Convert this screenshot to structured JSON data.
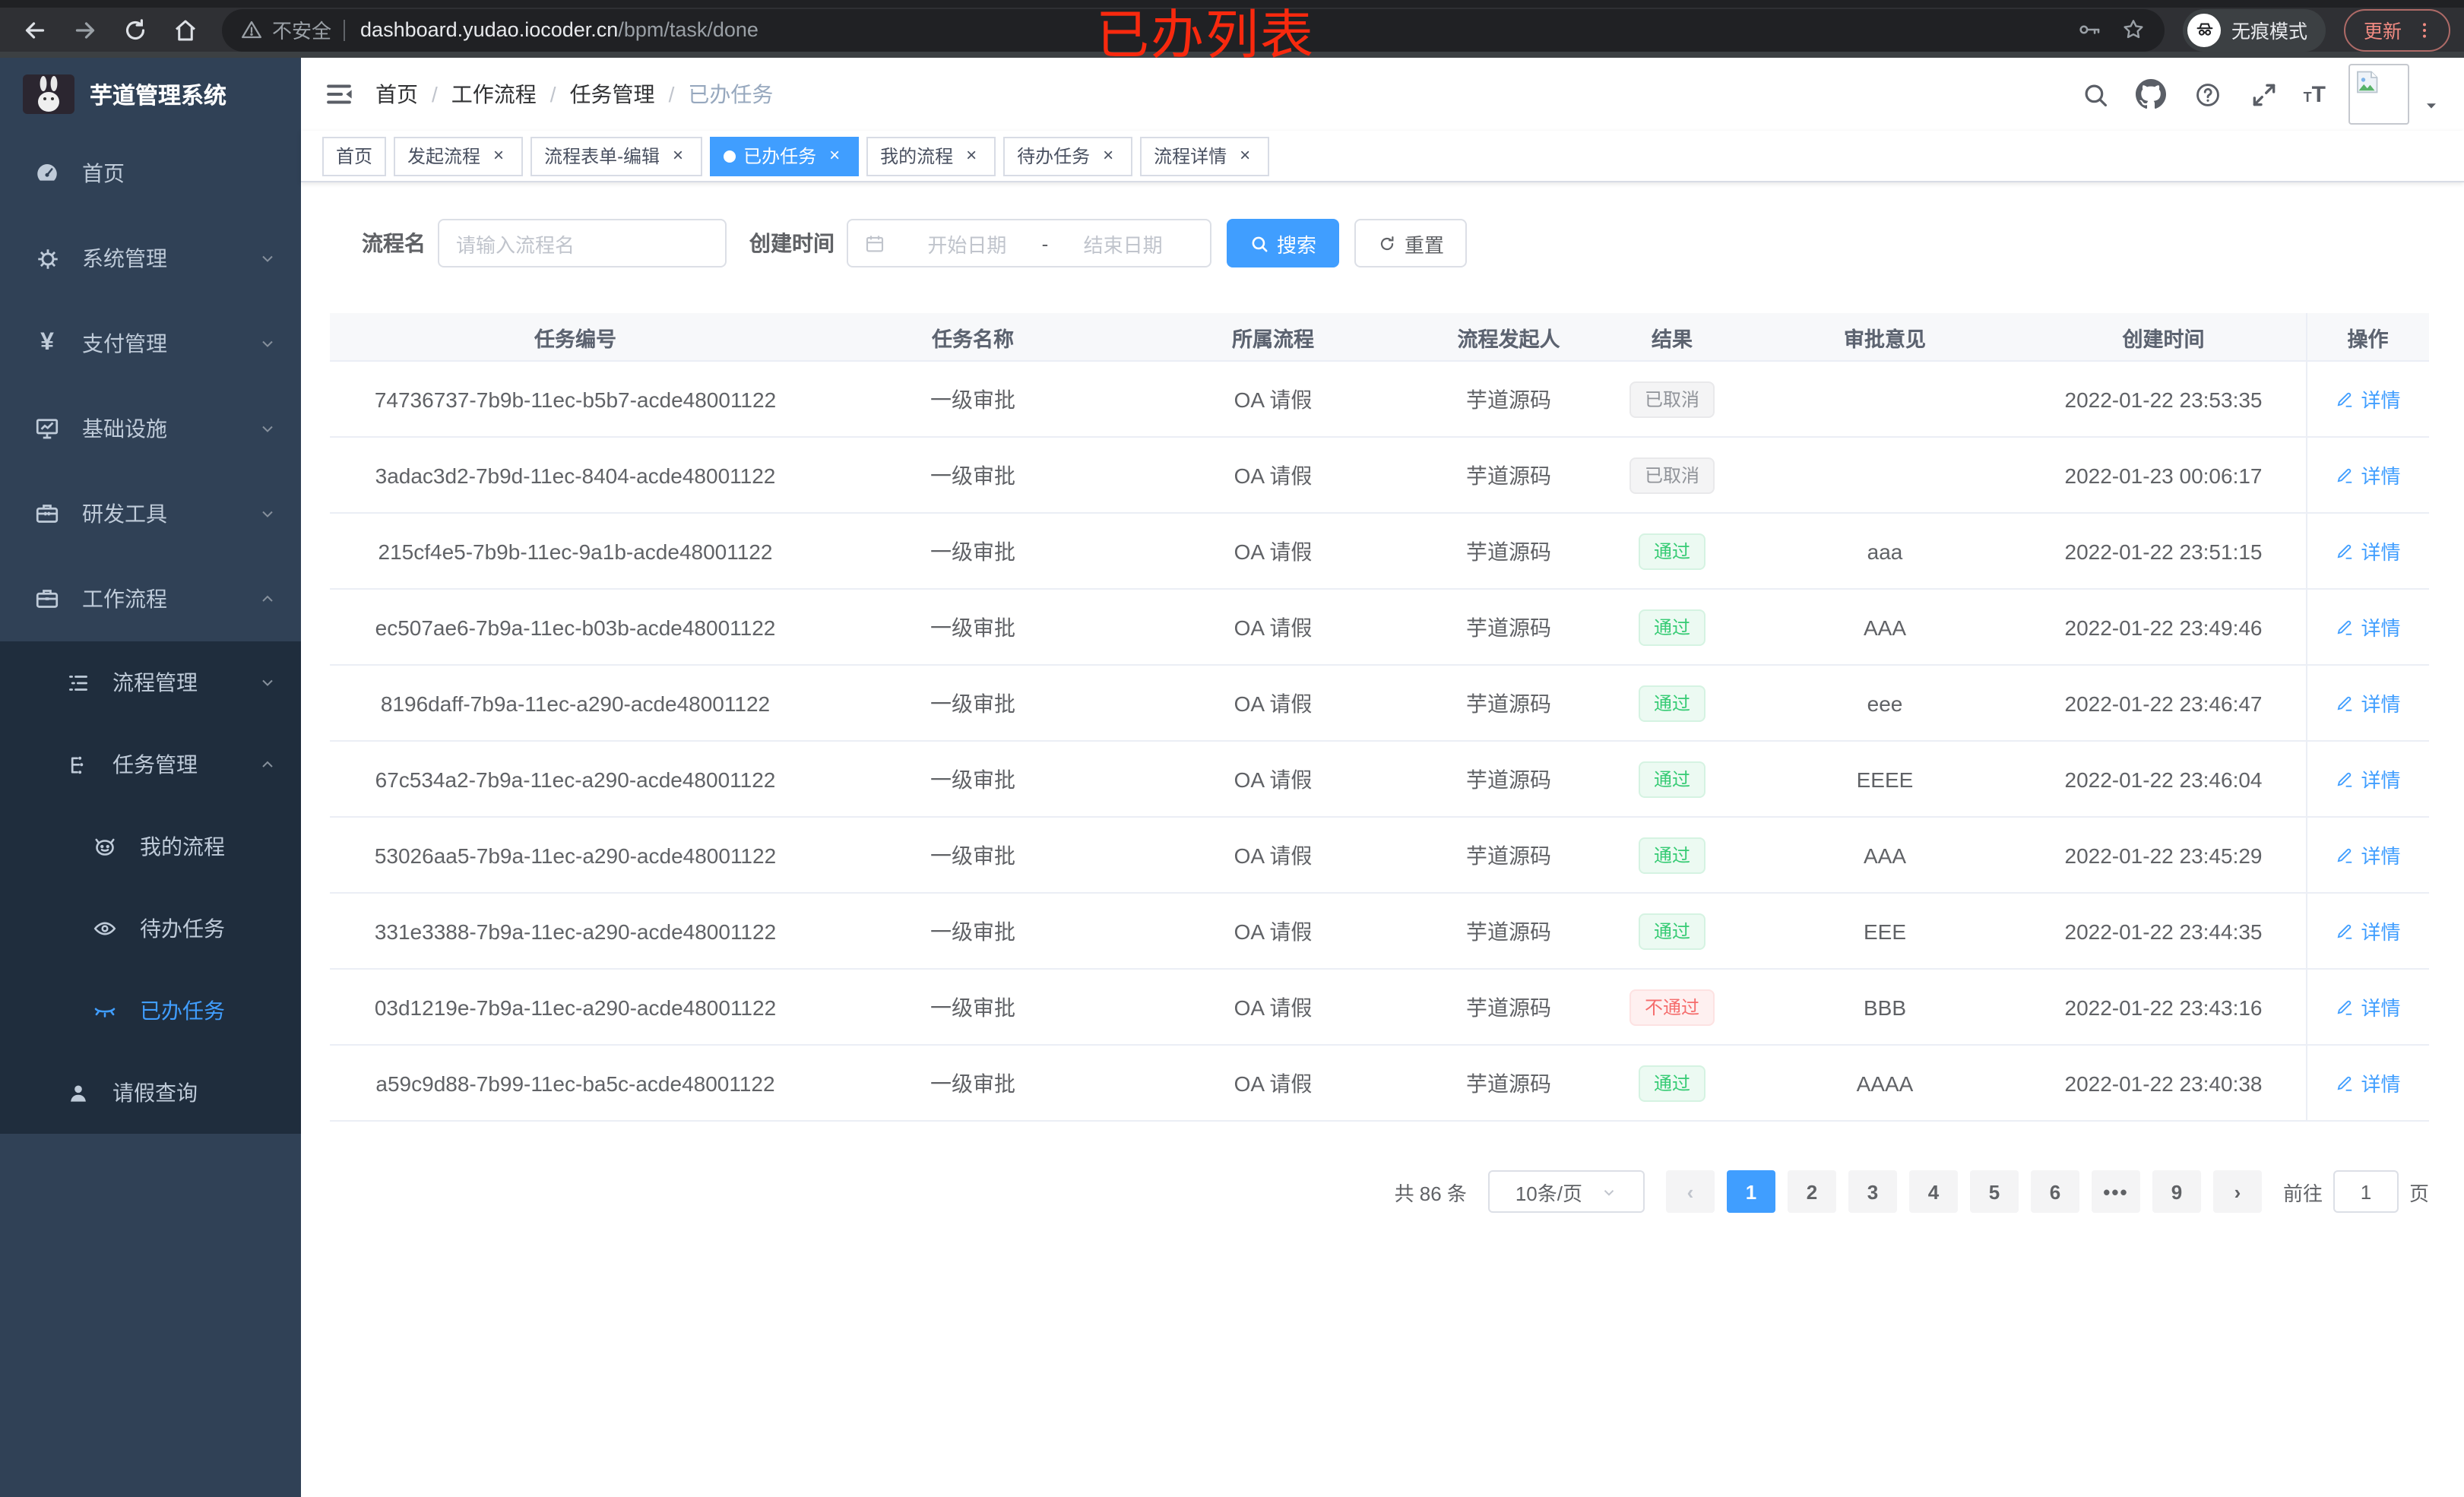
{
  "browser": {
    "security_label": "不安全",
    "url_domain": "dashboard.yudao.iocoder.cn",
    "url_path": "/bpm/task/done",
    "incognito_label": "无痕模式",
    "update_label": "更新"
  },
  "annotation": {
    "text": "已办列表",
    "color": "#f8290e"
  },
  "sidebar": {
    "title": "芋道管理系统",
    "items": [
      {
        "label": "首页"
      },
      {
        "label": "系统管理"
      },
      {
        "label": "支付管理"
      },
      {
        "label": "基础设施"
      },
      {
        "label": "研发工具"
      },
      {
        "label": "工作流程"
      }
    ],
    "workflow_children": [
      {
        "label": "流程管理"
      },
      {
        "label": "任务管理"
      }
    ],
    "task_children": [
      {
        "label": "我的流程"
      },
      {
        "label": "待办任务"
      },
      {
        "label": "已办任务"
      }
    ],
    "leave_query_label": "请假查询"
  },
  "navbar": {
    "breadcrumb": [
      {
        "label": "首页"
      },
      {
        "label": "工作流程"
      },
      {
        "label": "任务管理"
      },
      {
        "label": "已办任务"
      }
    ]
  },
  "tabs": [
    {
      "label": "首页"
    },
    {
      "label": "发起流程"
    },
    {
      "label": "流程表单-编辑"
    },
    {
      "label": "已办任务"
    },
    {
      "label": "我的流程"
    },
    {
      "label": "待办任务"
    },
    {
      "label": "流程详情"
    }
  ],
  "filters": {
    "name_label": "流程名",
    "name_placeholder": "请输入流程名",
    "time_label": "创建时间",
    "start_placeholder": "开始日期",
    "range_separator": "-",
    "end_placeholder": "结束日期",
    "search_label": "搜索",
    "reset_label": "重置"
  },
  "table": {
    "headers": [
      "任务编号",
      "任务名称",
      "所属流程",
      "流程发起人",
      "结果",
      "审批意见",
      "创建时间",
      "操作"
    ],
    "rows": [
      {
        "id": "74736737-7b9b-11ec-b5b7-acde48001122",
        "name": "一级审批",
        "process": "OA 请假",
        "starter": "芋道源码",
        "result": "已取消",
        "result_type": "info",
        "opinion": "",
        "created": "2022-01-22 23:53:35",
        "action": "详情"
      },
      {
        "id": "3adac3d2-7b9d-11ec-8404-acde48001122",
        "name": "一级审批",
        "process": "OA 请假",
        "starter": "芋道源码",
        "result": "已取消",
        "result_type": "info",
        "opinion": "",
        "created": "2022-01-23 00:06:17",
        "action": "详情"
      },
      {
        "id": "215cf4e5-7b9b-11ec-9a1b-acde48001122",
        "name": "一级审批",
        "process": "OA 请假",
        "starter": "芋道源码",
        "result": "通过",
        "result_type": "success",
        "opinion": "aaa",
        "created": "2022-01-22 23:51:15",
        "action": "详情"
      },
      {
        "id": "ec507ae6-7b9a-11ec-b03b-acde48001122",
        "name": "一级审批",
        "process": "OA 请假",
        "starter": "芋道源码",
        "result": "通过",
        "result_type": "success",
        "opinion": "AAA",
        "created": "2022-01-22 23:49:46",
        "action": "详情"
      },
      {
        "id": "8196daff-7b9a-11ec-a290-acde48001122",
        "name": "一级审批",
        "process": "OA 请假",
        "starter": "芋道源码",
        "result": "通过",
        "result_type": "success",
        "opinion": "eee",
        "created": "2022-01-22 23:46:47",
        "action": "详情"
      },
      {
        "id": "67c534a2-7b9a-11ec-a290-acde48001122",
        "name": "一级审批",
        "process": "OA 请假",
        "starter": "芋道源码",
        "result": "通过",
        "result_type": "success",
        "opinion": "EEEE",
        "created": "2022-01-22 23:46:04",
        "action": "详情"
      },
      {
        "id": "53026aa5-7b9a-11ec-a290-acde48001122",
        "name": "一级审批",
        "process": "OA 请假",
        "starter": "芋道源码",
        "result": "通过",
        "result_type": "success",
        "opinion": "AAA",
        "created": "2022-01-22 23:45:29",
        "action": "详情"
      },
      {
        "id": "331e3388-7b9a-11ec-a290-acde48001122",
        "name": "一级审批",
        "process": "OA 请假",
        "starter": "芋道源码",
        "result": "通过",
        "result_type": "success",
        "opinion": "EEE",
        "created": "2022-01-22 23:44:35",
        "action": "详情"
      },
      {
        "id": "03d1219e-7b9a-11ec-a290-acde48001122",
        "name": "一级审批",
        "process": "OA 请假",
        "starter": "芋道源码",
        "result": "不通过",
        "result_type": "danger",
        "opinion": "BBB",
        "created": "2022-01-22 23:43:16",
        "action": "详情"
      },
      {
        "id": "a59c9d88-7b99-11ec-ba5c-acde48001122",
        "name": "一级审批",
        "process": "OA 请假",
        "starter": "芋道源码",
        "result": "通过",
        "result_type": "success",
        "opinion": "AAAA",
        "created": "2022-01-22 23:40:38",
        "action": "详情"
      }
    ]
  },
  "pagination": {
    "total_label": "共 86 条",
    "page_size_label": "10条/页",
    "prev_label": "‹",
    "pages": [
      "1",
      "2",
      "3",
      "4",
      "5",
      "6",
      "•••",
      "9"
    ],
    "current_page": "1",
    "next_label": "›",
    "goto_label": "前往",
    "goto_value": "1",
    "goto_unit": "页"
  },
  "colors": {
    "primary": "#409eff",
    "success_text": "#36cb74",
    "danger_text": "#f56c6c",
    "info_text": "#909399",
    "sidebar_bg": "#304156",
    "sidebar_sub_bg": "#1f2d3d",
    "annotation_red": "#f8290e"
  }
}
